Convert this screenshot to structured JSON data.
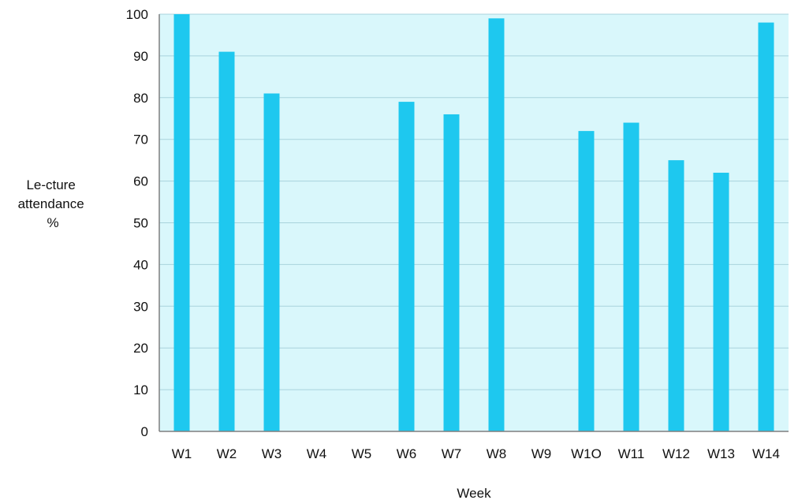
{
  "chart_data": {
    "type": "bar",
    "title": "",
    "xlabel": "Week",
    "ylabel_lines": [
      "Le-cture",
      "attendance",
      "%"
    ],
    "categories": [
      "W1",
      "W2",
      "W3",
      "W4",
      "W5",
      "W6",
      "W7",
      "W8",
      "W9",
      "W1O",
      "W11",
      "W12",
      "W13",
      "W14"
    ],
    "values": [
      100,
      91,
      81,
      null,
      null,
      79,
      76,
      99,
      null,
      72,
      74,
      65,
      62,
      98
    ],
    "ylim": [
      0,
      100
    ],
    "yticks": [
      0,
      10,
      20,
      30,
      40,
      50,
      60,
      70,
      80,
      90,
      100
    ],
    "grid": true,
    "legend": "none",
    "colors": {
      "bar": "#1ec8ef",
      "plot_background": "#d9f7fb",
      "gridline": "#a9d3dc",
      "axis": "#7f7f7f"
    }
  }
}
